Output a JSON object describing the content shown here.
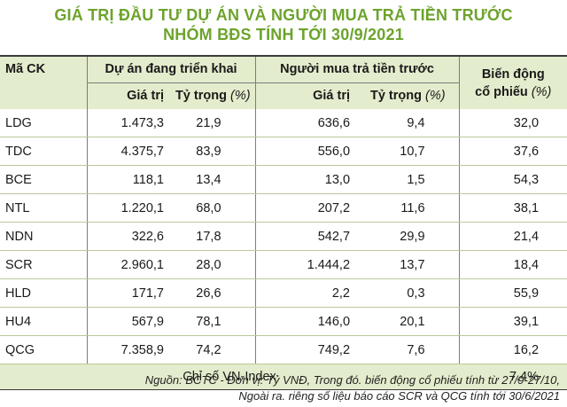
{
  "title": {
    "line1": "GIÁ TRỊ ĐẦU TƯ DỰ ÁN VÀ NGƯỜI MUA TRẢ TIỀN TRƯỚC",
    "line2": "NHÓM BĐS TÍNH TỚI 30/9/2021"
  },
  "header": {
    "code": "Mã CK",
    "group1": "Dự án đang triển khai",
    "group2": "Người mua trả tiền trước",
    "change_line1": "Biến động",
    "change_line2": "cổ phiếu",
    "change_unit": "(%)",
    "value": "Giá trị",
    "weight": "Tỷ trọng",
    "weight_unit": "(%)"
  },
  "rows": [
    {
      "code": "LDG",
      "v1": "1.473,3",
      "w1": "21,9",
      "v2": "636,6",
      "w2": "9,4",
      "chg": "32,0"
    },
    {
      "code": "TDC",
      "v1": "4.375,7",
      "w1": "83,9",
      "v2": "556,0",
      "w2": "10,7",
      "chg": "37,6"
    },
    {
      "code": "BCE",
      "v1": "118,1",
      "w1": "13,4",
      "v2": "13,0",
      "w2": "1,5",
      "chg": "54,3"
    },
    {
      "code": "NTL",
      "v1": "1.220,1",
      "w1": "68,0",
      "v2": "207,2",
      "w2": "11,6",
      "chg": "38,1"
    },
    {
      "code": "NDN",
      "v1": "322,6",
      "w1": "17,8",
      "v2": "542,7",
      "w2": "29,9",
      "chg": "21,4"
    },
    {
      "code": "SCR",
      "v1": "2.960,1",
      "w1": "28,0",
      "v2": "1.444,2",
      "w2": "13,7",
      "chg": "18,4"
    },
    {
      "code": "HLD",
      "v1": "171,7",
      "w1": "26,6",
      "v2": "2,2",
      "w2": "0,3",
      "chg": "55,9"
    },
    {
      "code": "HU4",
      "v1": "567,9",
      "w1": "78,1",
      "v2": "146,0",
      "w2": "20,1",
      "chg": "39,1"
    },
    {
      "code": "QCG",
      "v1": "7.358,9",
      "w1": "74,2",
      "v2": "749,2",
      "w2": "7,6",
      "chg": "16,2"
    }
  ],
  "index_row": {
    "label": "Chỉ số VN-Index",
    "value": "7,4%"
  },
  "source": {
    "line1": "Nguồn: BCTC - Đơn vị: Tỷ VNĐ, Trong đó. biến động cổ phiếu tính từ 27/9-27/10,",
    "line2": "Ngoài ra. riêng số liệu báo cáo SCR và QCG tính tới 30/6/2021"
  },
  "colors": {
    "title": "#6da32c",
    "header_bg": "#e3eccc"
  }
}
